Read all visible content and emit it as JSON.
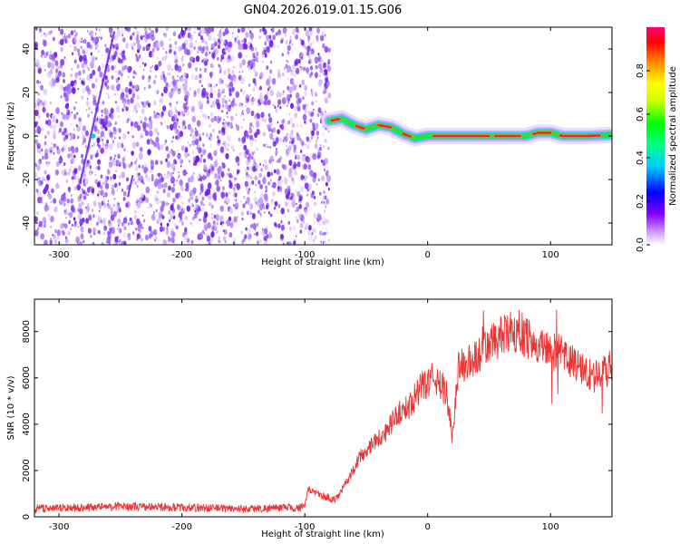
{
  "title": "GN04.2026.019.01.15.G06",
  "colors": {
    "snr_line": "#ee3333",
    "background_point": "#7a2cf0",
    "frame": "#000000"
  },
  "chart_data": [
    {
      "type": "heatmap",
      "name": "spectrogram",
      "xlabel": "Height of straight line (km)",
      "ylabel": "Frequency (Hz)",
      "xlim": [
        -320,
        150
      ],
      "ylim": [
        -50,
        50
      ],
      "xticks": [
        -300,
        -200,
        -100,
        0,
        100
      ],
      "yticks": [
        -40,
        -20,
        0,
        20,
        40
      ],
      "xtick_labels": [
        "-300",
        "-200",
        "-100",
        "0",
        "100"
      ],
      "ytick_labels": [
        "-40",
        "-20",
        "0",
        "20",
        "40"
      ],
      "noise_region_x": [
        -320,
        -80
      ],
      "track": {
        "x": [
          -80,
          -70,
          -60,
          -50,
          -40,
          -30,
          -20,
          -10,
          0,
          20,
          40,
          60,
          80,
          90,
          100,
          110,
          130,
          150
        ],
        "y": [
          7,
          8,
          5,
          3,
          5,
          4,
          1,
          -1,
          0,
          0,
          0,
          0,
          0,
          1.5,
          1.5,
          0,
          0,
          0.5
        ]
      },
      "colorbar": {
        "label": "Normalized spectral amplitude",
        "range": [
          0,
          1
        ],
        "ticks": [
          0.0,
          0.2,
          0.4,
          0.6,
          0.8
        ],
        "tick_labels": [
          "0.0",
          "0.2",
          "0.4",
          "0.6",
          "0.8"
        ],
        "colormap": [
          "#ffffff",
          "#8800ff",
          "#0000ff",
          "#00ffff",
          "#00ff00",
          "#ffff00",
          "#ff8800",
          "#ff0000",
          "#ff0066"
        ]
      }
    },
    {
      "type": "line",
      "name": "snr",
      "xlabel": "Height of straight line (km)",
      "ylabel": "SNR (10 * v/v)",
      "xlim": [
        -320,
        150
      ],
      "ylim": [
        0,
        9400
      ],
      "xticks": [
        -300,
        -200,
        -100,
        0,
        100
      ],
      "yticks": [
        0,
        2000,
        4000,
        6000,
        8000
      ],
      "xtick_labels": [
        "-300",
        "-200",
        "-100",
        "0",
        "100"
      ],
      "ytick_labels": [
        "0",
        "2000",
        "4000",
        "6000",
        "8000"
      ],
      "series": [
        {
          "name": "SNR",
          "x": [
            -320,
            -250,
            -150,
            -100,
            -98,
            -85,
            -75,
            -65,
            -55,
            -45,
            -35,
            -25,
            -15,
            -5,
            5,
            15,
            20,
            25,
            35,
            45,
            55,
            65,
            75,
            85,
            95,
            105,
            115,
            125,
            135,
            150
          ],
          "y": [
            350,
            450,
            350,
            400,
            1200,
            900,
            700,
            1600,
            2600,
            3200,
            3600,
            4400,
            4800,
            5600,
            6000,
            5400,
            3500,
            6500,
            6600,
            7200,
            7600,
            7900,
            8000,
            7600,
            7300,
            7100,
            6800,
            6400,
            6000,
            6500
          ]
        }
      ]
    }
  ]
}
